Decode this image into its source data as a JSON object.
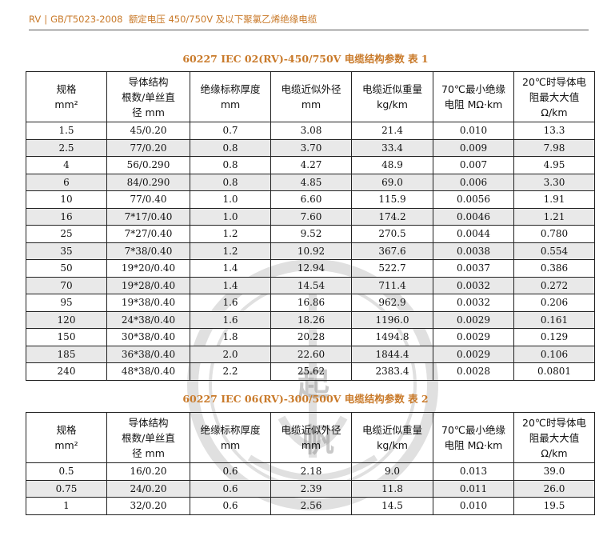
{
  "header": {
    "product": "RV",
    "standard": "GB/T5023-2008",
    "description": "额定电压 450/750V 及以下聚氯乙烯绝缘电缆"
  },
  "headers": {
    "size": [
      "规格",
      "mm²"
    ],
    "conductor": [
      "导体结构",
      "根数/单丝直",
      "径 mm"
    ],
    "insulation": [
      "绝缘标称厚度",
      "mm"
    ],
    "diameter": [
      "电缆近似外径",
      "mm"
    ],
    "weight": [
      "电缆近似重量",
      "kg/km"
    ],
    "resistance70": [
      "70℃最小绝缘",
      "电阻 MΩ·km"
    ],
    "resistance20": [
      "20℃时导体电",
      "阻最大大值",
      "Ω/km"
    ]
  },
  "table1": {
    "title": "60227 IEC 02(RV)-450/750V 电缆结构参数  表 1",
    "rows": [
      [
        "1.5",
        "45/0.20",
        "0.7",
        "3.08",
        "21.4",
        "0.010",
        "13.3"
      ],
      [
        "2.5",
        "77/0.20",
        "0.8",
        "3.70",
        "33.4",
        "0.009",
        "7.98"
      ],
      [
        "4",
        "56/0.290",
        "0.8",
        "4.27",
        "48.9",
        "0.007",
        "4.95"
      ],
      [
        "6",
        "84/0.290",
        "0.8",
        "4.85",
        "69.0",
        "0.006",
        "3.30"
      ],
      [
        "10",
        "77/0.40",
        "1.0",
        "6.60",
        "115.9",
        "0.0056",
        "1.91"
      ],
      [
        "16",
        "7*17/0.40",
        "1.0",
        "7.60",
        "174.2",
        "0.0046",
        "1.21"
      ],
      [
        "25",
        "7*27/0.40",
        "1.2",
        "9.52",
        "270.5",
        "0.0044",
        "0.780"
      ],
      [
        "35",
        "7*38/0.40",
        "1.2",
        "10.92",
        "367.6",
        "0.0038",
        "0.554"
      ],
      [
        "50",
        "19*20/0.40",
        "1.4",
        "12.94",
        "522.7",
        "0.0037",
        "0.386"
      ],
      [
        "70",
        "19*28/0.40",
        "1.4",
        "14.54",
        "711.4",
        "0.0032",
        "0.272"
      ],
      [
        "95",
        "19*38/0.40",
        "1.6",
        "16.86",
        "962.9",
        "0.0032",
        "0.206"
      ],
      [
        "120",
        "24*38/0.40",
        "1.6",
        "18.26",
        "1196.0",
        "0.0029",
        "0.161"
      ],
      [
        "150",
        "30*38/0.40",
        "1.8",
        "20.28",
        "1494.8",
        "0.0029",
        "0.129"
      ],
      [
        "185",
        "36*38/0.40",
        "2.0",
        "22.60",
        "1844.4",
        "0.0029",
        "0.106"
      ],
      [
        "240",
        "48*38/0.40",
        "2.2",
        "25.62",
        "2383.4",
        "0.0028",
        "0.0801"
      ]
    ]
  },
  "table2": {
    "title": "60227 IEC 06(RV)-300/500V 电缆结构参数  表 2",
    "rows": [
      [
        "0.5",
        "16/0.20",
        "0.6",
        "2.18",
        "9.0",
        "0.013",
        "39.0"
      ],
      [
        "0.75",
        "24/0.20",
        "0.6",
        "2.39",
        "11.8",
        "0.011",
        "26.0"
      ],
      [
        "1",
        "32/0.20",
        "0.6",
        "2.56",
        "14.5",
        "0.010",
        "19.5"
      ]
    ]
  },
  "watermark": {
    "text": [
      "起",
      "帆"
    ],
    "color": "#8a8a8a"
  },
  "colors": {
    "accent": "#c97a2a",
    "shade": "#e9e9e9",
    "border": "#222222"
  }
}
